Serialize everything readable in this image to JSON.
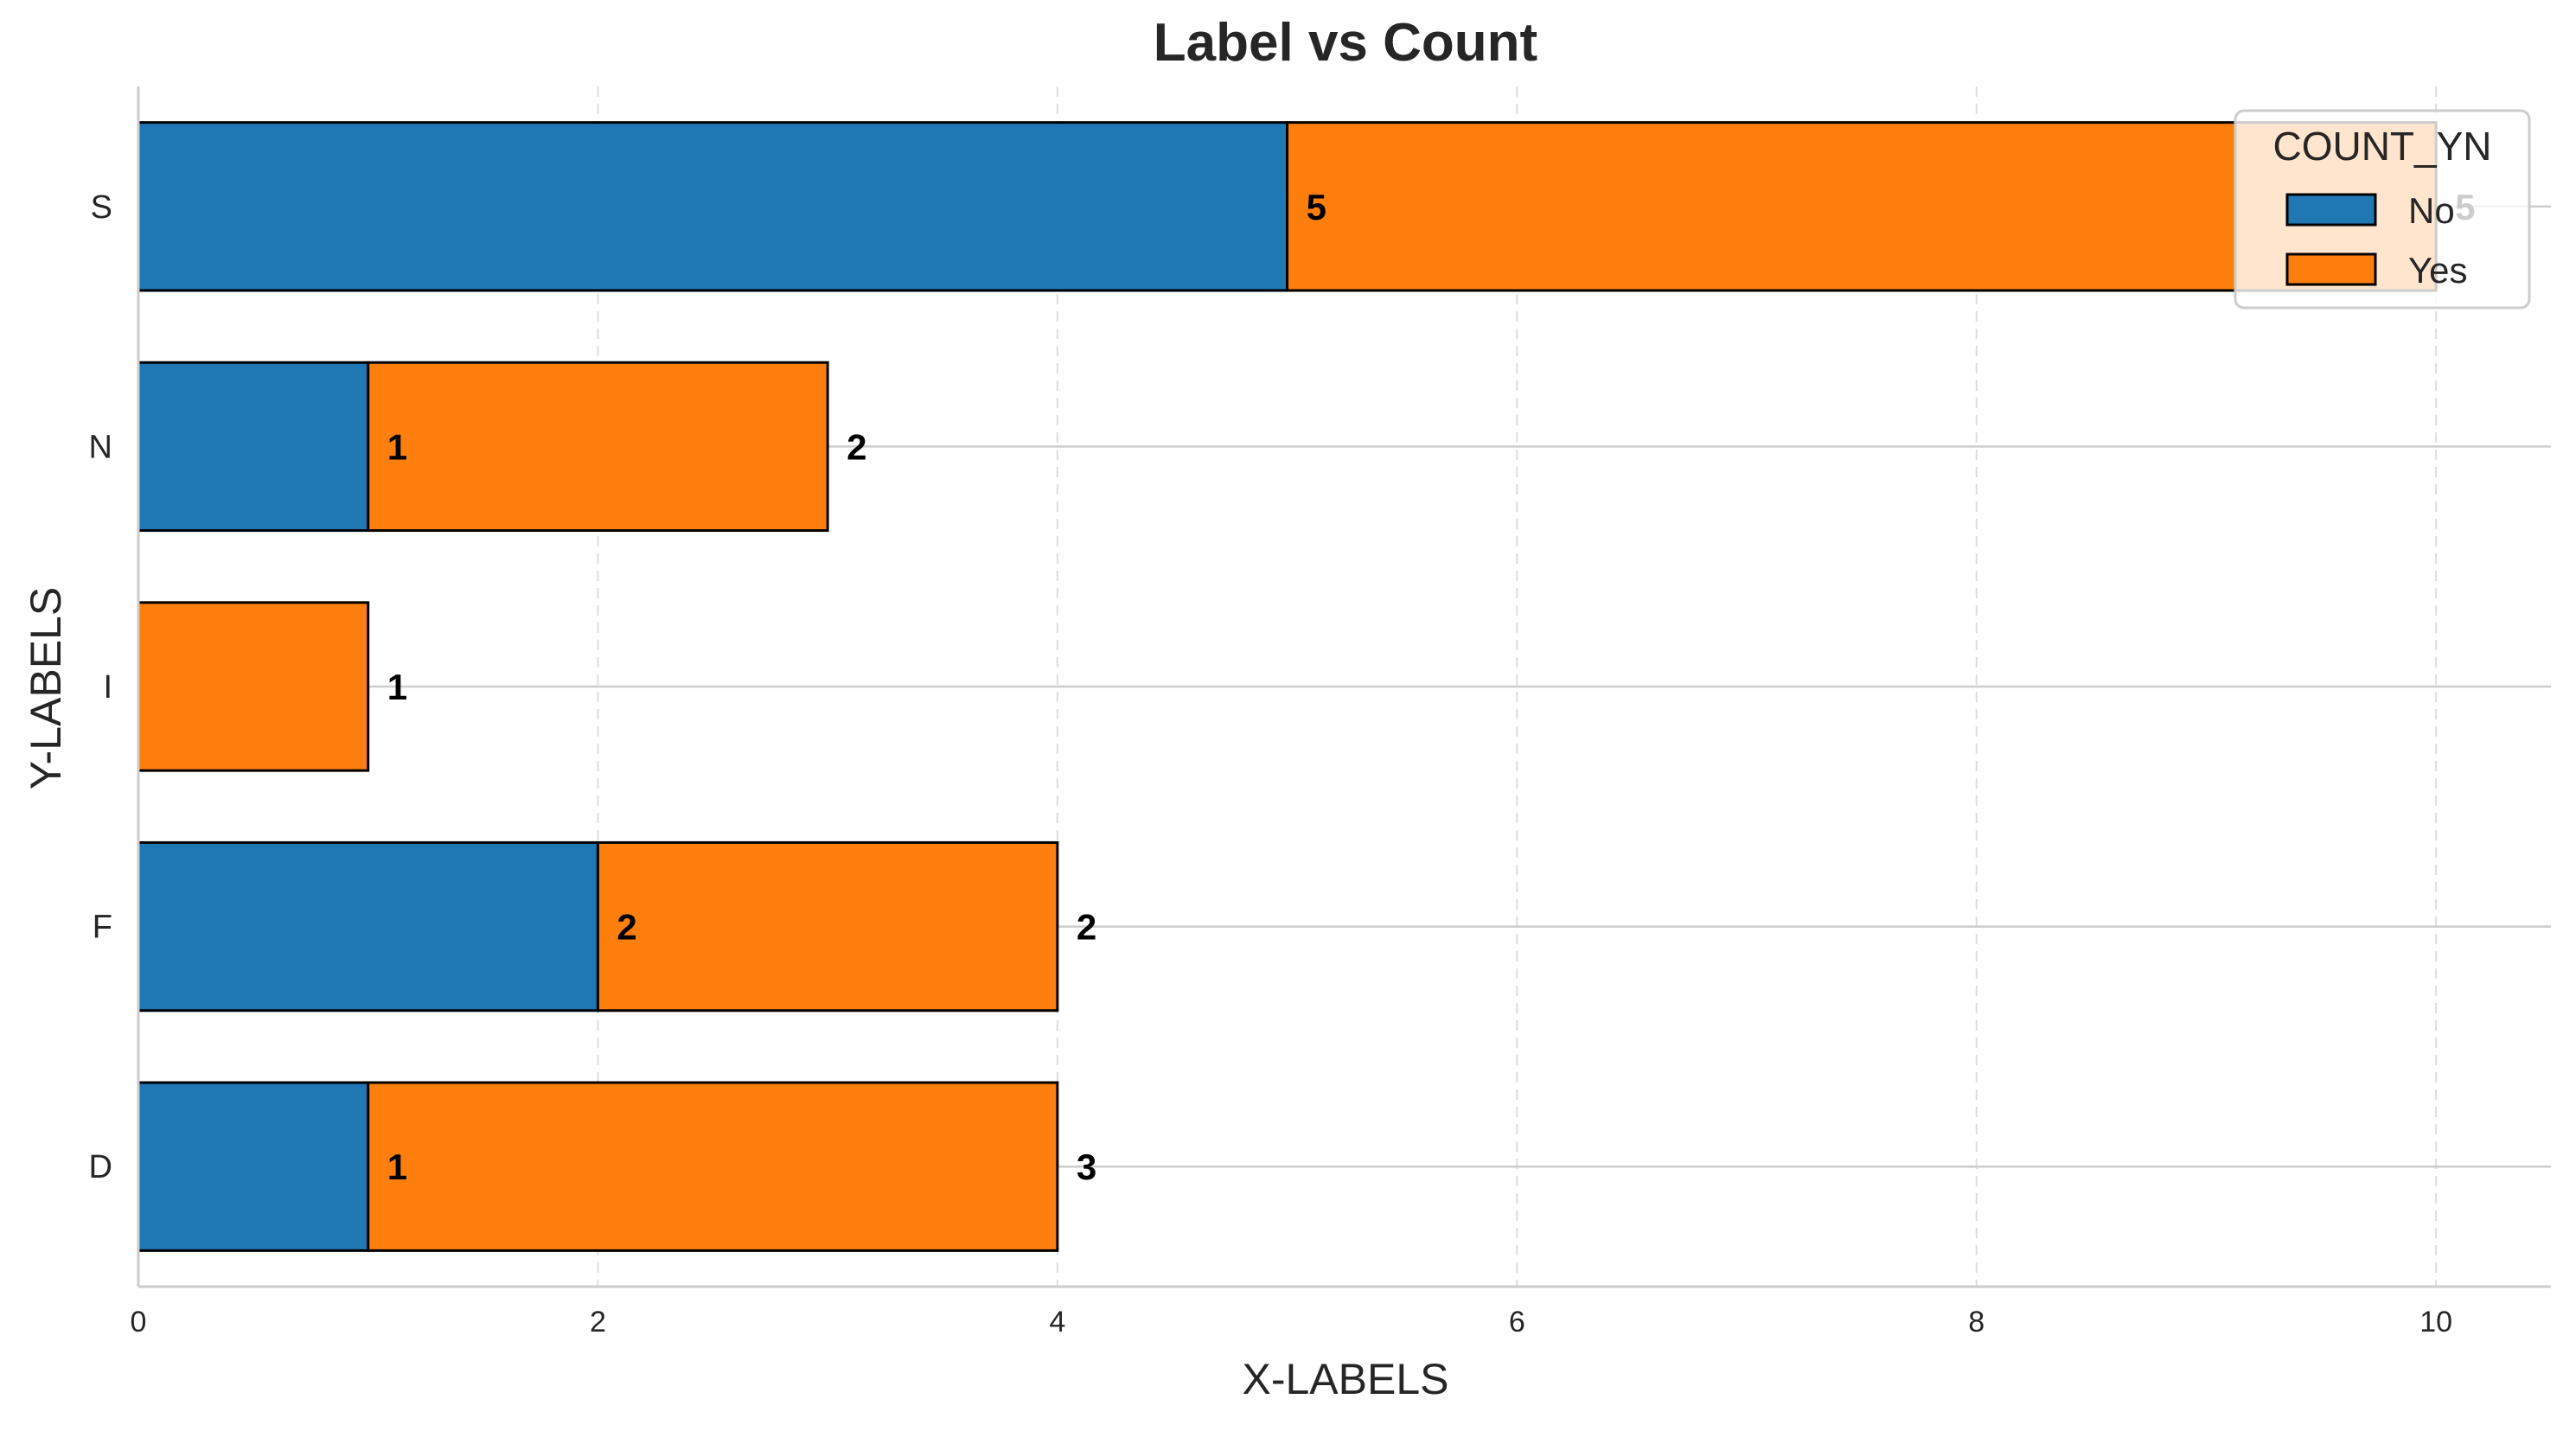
{
  "chart_data": {
    "type": "bar",
    "orientation": "horizontal",
    "stacked": true,
    "title": "Label vs Count",
    "xlabel": "X-LABELS",
    "ylabel": "Y-LABELS",
    "xlim": [
      0,
      10.5
    ],
    "xticks": [
      0,
      2,
      4,
      6,
      8,
      10
    ],
    "xtick_labels": [
      "0",
      "2",
      "4",
      "6",
      "8",
      "10"
    ],
    "categories": [
      "D",
      "F",
      "I",
      "N",
      "S"
    ],
    "series": [
      {
        "name": "No",
        "color": "#1f77b4",
        "values": [
          1,
          2,
          0,
          1,
          5
        ]
      },
      {
        "name": "Yes",
        "color": "#ff7f0e",
        "values": [
          3,
          2,
          1,
          2,
          5
        ]
      }
    ],
    "data_labels": {
      "No": [
        "1",
        "2",
        "",
        "1",
        "5"
      ],
      "Yes": [
        "3",
        "2",
        "1",
        "2",
        "5"
      ]
    },
    "legend": {
      "title": "COUNT_YN",
      "position": "top-right"
    },
    "grid": {
      "x": "dashed",
      "y": "solid"
    }
  }
}
